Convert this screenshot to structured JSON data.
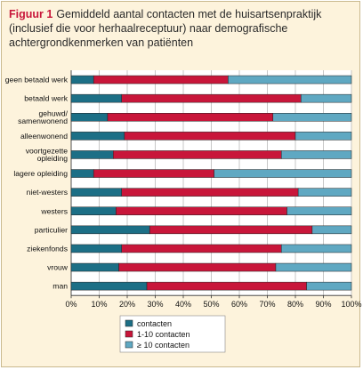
{
  "caption": {
    "label": "Figuur 1",
    "text": "Gemiddeld aantal contacten met de huisartsenpraktijk (inclusief die voor herhaalreceptuur) naar demografische achtergrondkenmerken van patiënten"
  },
  "colors": {
    "background": "#fdf3dc",
    "series": [
      "#1c6f86",
      "#c8163a",
      "#5fa8c2"
    ]
  },
  "chart_data": {
    "type": "bar",
    "orientation": "horizontal",
    "stacked": true,
    "percent": true,
    "categories": [
      [
        "geen betaald werk"
      ],
      [
        "betaald werk"
      ],
      [
        "gehuwd/",
        "samenwonend"
      ],
      [
        "alleenwonend"
      ],
      [
        "voortgezette",
        "opleiding"
      ],
      [
        "lagere opleiding"
      ],
      [
        "niet-westers"
      ],
      [
        "westers"
      ],
      [
        "particulier"
      ],
      [
        "ziekenfonds"
      ],
      [
        "vrouw"
      ],
      [
        "man"
      ]
    ],
    "series": [
      {
        "name": "contacten",
        "values": [
          8,
          18,
          13,
          19,
          15,
          8,
          18,
          16,
          28,
          18,
          17,
          27
        ]
      },
      {
        "name": "1-10 contacten",
        "values": [
          48,
          64,
          59,
          61,
          60,
          43,
          63,
          61,
          58,
          57,
          56,
          57
        ]
      },
      {
        "name": "≥ 10 contacten",
        "values": [
          44,
          18,
          28,
          20,
          25,
          49,
          19,
          23,
          14,
          25,
          27,
          16
        ]
      }
    ],
    "xlim": [
      0,
      100
    ],
    "xticks": [
      "0%",
      "10%",
      "20%",
      "30%",
      "40%",
      "50%",
      "60%",
      "70%",
      "80%",
      "90%",
      "100%"
    ],
    "grid": "vertical",
    "legend": "bottom-center"
  }
}
